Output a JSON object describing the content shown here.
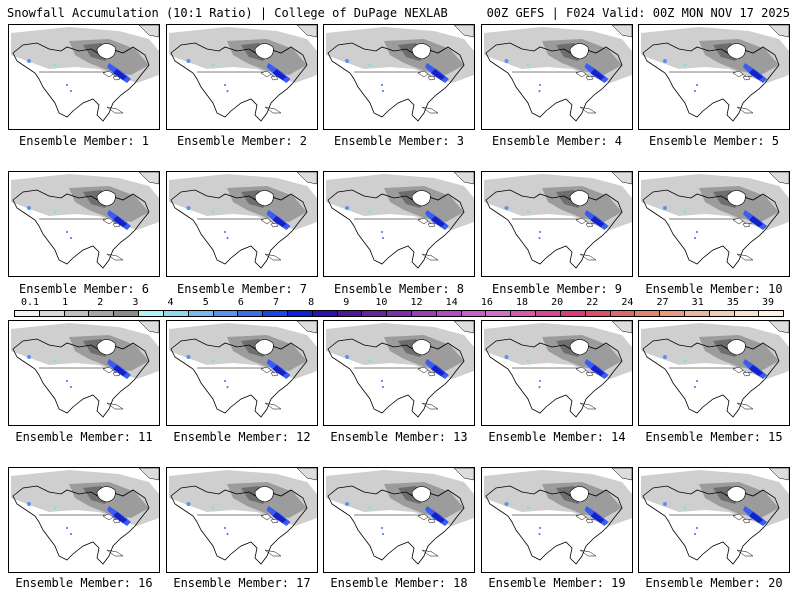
{
  "header": {
    "title": "Snowfall Accumulation (10:1 Ratio) | College of DuPage NEXLAB",
    "run_info": "00Z GEFS | F024 Valid: 00Z MON NOV 17 2025"
  },
  "panels": [
    {
      "label": "Ensemble Member: 1"
    },
    {
      "label": "Ensemble Member: 2"
    },
    {
      "label": "Ensemble Member: 3"
    },
    {
      "label": "Ensemble Member: 4"
    },
    {
      "label": "Ensemble Member: 5"
    },
    {
      "label": "Ensemble Member: 6"
    },
    {
      "label": "Ensemble Member: 7"
    },
    {
      "label": "Ensemble Member: 8"
    },
    {
      "label": "Ensemble Member: 9"
    },
    {
      "label": "Ensemble Member: 10"
    },
    {
      "label": "Ensemble Member: 11"
    },
    {
      "label": "Ensemble Member: 12"
    },
    {
      "label": "Ensemble Member: 13"
    },
    {
      "label": "Ensemble Member: 14"
    },
    {
      "label": "Ensemble Member: 15"
    },
    {
      "label": "Ensemble Member: 16"
    },
    {
      "label": "Ensemble Member: 17"
    },
    {
      "label": "Ensemble Member: 18"
    },
    {
      "label": "Ensemble Member: 19"
    },
    {
      "label": "Ensemble Member: 20"
    }
  ],
  "colorbar": {
    "labels": [
      "0.1",
      "1",
      "2",
      "3",
      "4",
      "5",
      "6",
      "7",
      "8",
      "9",
      "10",
      "12",
      "14",
      "16",
      "18",
      "20",
      "22",
      "24",
      "27",
      "31",
      "35",
      "39"
    ],
    "colors": [
      "#f2f2f2",
      "#d9d9d9",
      "#bfbfbf",
      "#a6a6a6",
      "#8c8c8c",
      "#b3f2f2",
      "#8fd9f0",
      "#7ab8ee",
      "#5c94ec",
      "#3d6fea",
      "#1f45e8",
      "#0a1fe0",
      "#2a10b8",
      "#4a1a9a",
      "#6a249a",
      "#7e2fa8",
      "#9640b4",
      "#ae50c0",
      "#c460c8",
      "#d070c8",
      "#d85aa8",
      "#d84a90",
      "#d83c7c",
      "#d8506a",
      "#dc6a6a",
      "#e0866e",
      "#e49e7e",
      "#eab89a",
      "#f0cfb4",
      "#f6e2cc",
      "#fbf1e4"
    ]
  }
}
